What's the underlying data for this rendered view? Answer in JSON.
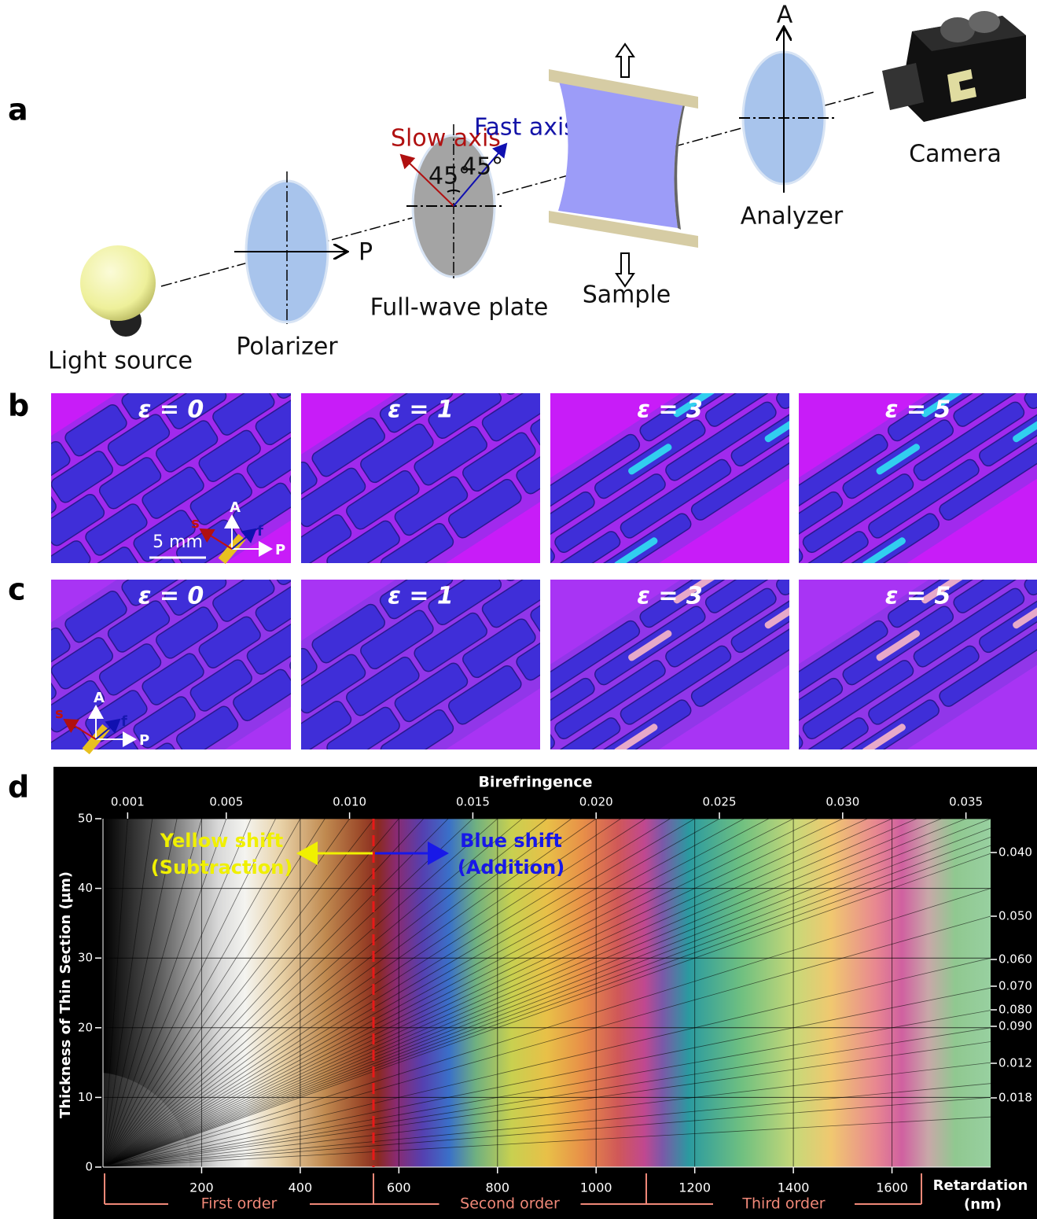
{
  "panel_a": {
    "label": "a",
    "components": {
      "light_source": "Light source",
      "polarizer": "Polarizer",
      "full_wave_plate": "Full-wave plate",
      "sample": "Sample",
      "analyzer": "Analyzer",
      "camera": "Camera"
    },
    "polarizer_axis": "P",
    "analyzer_axis": "A",
    "slow_axis": "Slow axis",
    "fast_axis": "Fast axis",
    "angle_slow": "45°",
    "angle_fast": "45°"
  },
  "panel_b": {
    "label": "b",
    "strains": [
      "ε = 0",
      "ε = 1",
      "ε = 3",
      "ε = 5"
    ],
    "scale_bar": "5 mm",
    "axes": {
      "s": "s",
      "f": "f",
      "A": "A",
      "P": "P"
    }
  },
  "panel_c": {
    "label": "c",
    "strains": [
      "ε = 0",
      "ε = 1",
      "ε = 3",
      "ε = 5"
    ],
    "axes": {
      "s": "s",
      "f": "f",
      "A": "A",
      "P": "P"
    }
  },
  "panel_d": {
    "label": "d",
    "top_axis_title": "Birefringence",
    "top_ticks": [
      0.001,
      0.005,
      {
        "value": 0.01,
        "label": "0.010"
      },
      0.015,
      {
        "value": 0.02,
        "label": "0.020"
      },
      0.025,
      {
        "value": 0.03,
        "label": "0.030"
      },
      0.035
    ],
    "y_axis_title": "Thickness of Thin Section (µm)",
    "ylim": [
      0,
      50
    ],
    "yticks": [
      0,
      10,
      20,
      30,
      40,
      50
    ],
    "xlim": [
      0,
      1800
    ],
    "xticks": [
      200,
      400,
      600,
      800,
      1000,
      1200,
      1400,
      1600
    ],
    "x_axis_title": [
      "Retardation",
      "(nm)"
    ],
    "orders": [
      "First order",
      "Second order",
      "Third order"
    ],
    "right_ticks": [
      "0.040",
      "0.050",
      "0.060",
      "0.070",
      "0.080",
      "0.090",
      "0.012",
      "0.018"
    ],
    "annotations": {
      "yellow": [
        "Yellow shift",
        "(Subtraction)"
      ],
      "blue": [
        "Blue shift",
        "(Addition)"
      ]
    }
  }
}
